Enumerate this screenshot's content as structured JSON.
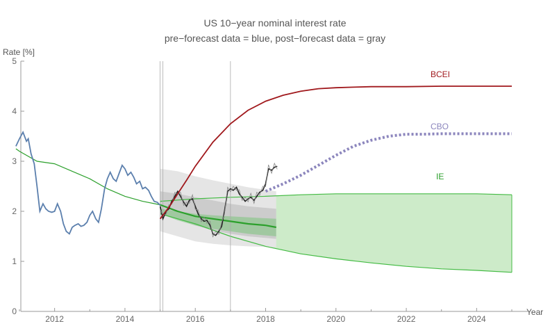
{
  "chart_data": {
    "type": "line",
    "title": "US 10−year nominal interest rate",
    "subtitle": "pre−forecast data = blue, post−forecast data = gray",
    "xlabel": "Year",
    "ylabel": "Rate [%]",
    "xlim": [
      2010.9,
      2025.1
    ],
    "ylim": [
      0,
      5
    ],
    "x_ticks": [
      {
        "value": 2012,
        "label": "2012"
      },
      {
        "value": 2014,
        "label": "2014"
      },
      {
        "value": 2016,
        "label": "2016"
      },
      {
        "value": 2018,
        "label": "2018"
      },
      {
        "value": 2020,
        "label": "2020"
      },
      {
        "value": 2022,
        "label": "2022"
      },
      {
        "value": 2024,
        "label": "2024"
      }
    ],
    "y_ticks": [
      {
        "value": 0,
        "label": "0"
      },
      {
        "value": 1,
        "label": "1"
      },
      {
        "value": 2,
        "label": "2"
      },
      {
        "value": 3,
        "label": "3"
      },
      {
        "value": 4,
        "label": "4"
      },
      {
        "value": 5,
        "label": "5"
      }
    ],
    "vertical_lines": [
      2015.0,
      2015.08,
      2017.0
    ],
    "colors": {
      "pre": "#5b7fad",
      "post": "#222222",
      "bcei": "#a0181c",
      "cbo": "#8c86bd",
      "ie_line": "#2ca02c",
      "ie_band": "#cdebc9",
      "ie_band_edge": "#44bb44",
      "gray_outer": "#e5e5e5",
      "gray_mid": "#cccccc",
      "inner_green": "#7cc47c",
      "text": "#555555",
      "axis": "#999999"
    },
    "series": [
      {
        "name": "pre-forecast data",
        "style": "blue",
        "x": [
          2010.9,
          2011.0,
          2011.1,
          2011.2,
          2011.25,
          2011.33,
          2011.42,
          2011.5,
          2011.58,
          2011.67,
          2011.75,
          2011.83,
          2011.92,
          2012.0,
          2012.08,
          2012.17,
          2012.25,
          2012.33,
          2012.42,
          2012.5,
          2012.58,
          2012.67,
          2012.75,
          2012.83,
          2012.92,
          2013.0,
          2013.08,
          2013.17,
          2013.25,
          2013.33,
          2013.42,
          2013.5,
          2013.58,
          2013.67,
          2013.75,
          2013.83,
          2013.92,
          2014.0,
          2014.08,
          2014.17,
          2014.25,
          2014.33,
          2014.42,
          2014.5,
          2014.58,
          2014.67,
          2014.75,
          2014.83,
          2014.92,
          2015.0
        ],
        "values": [
          3.3,
          3.45,
          3.58,
          3.4,
          3.45,
          3.15,
          2.95,
          2.5,
          2.0,
          2.15,
          2.05,
          2.0,
          1.98,
          2.0,
          2.15,
          2.0,
          1.75,
          1.6,
          1.55,
          1.68,
          1.72,
          1.75,
          1.7,
          1.72,
          1.78,
          1.92,
          2.0,
          1.85,
          1.78,
          2.05,
          2.45,
          2.65,
          2.78,
          2.65,
          2.6,
          2.75,
          2.92,
          2.85,
          2.72,
          2.78,
          2.68,
          2.55,
          2.6,
          2.45,
          2.48,
          2.42,
          2.3,
          2.2,
          2.18,
          2.12
        ]
      },
      {
        "name": "post-forecast data",
        "style": "black",
        "x": [
          2015.0,
          2015.08,
          2015.17,
          2015.25,
          2015.33,
          2015.42,
          2015.5,
          2015.58,
          2015.67,
          2015.75,
          2015.83,
          2015.92,
          2016.0,
          2016.08,
          2016.17,
          2016.25,
          2016.33,
          2016.42,
          2016.5,
          2016.58,
          2016.67,
          2016.75,
          2016.83,
          2016.92,
          2017.0,
          2017.08,
          2017.17,
          2017.25,
          2017.33,
          2017.42,
          2017.5,
          2017.58,
          2017.67,
          2017.75,
          2017.83,
          2017.92,
          2018.0,
          2018.08,
          2018.17,
          2018.25,
          2018.33
        ],
        "values": [
          2.1,
          1.85,
          2.0,
          2.05,
          2.2,
          2.3,
          2.4,
          2.3,
          2.18,
          2.1,
          2.22,
          2.25,
          2.1,
          1.95,
          1.85,
          1.8,
          1.82,
          1.72,
          1.55,
          1.52,
          1.6,
          1.7,
          2.0,
          2.4,
          2.45,
          2.42,
          2.48,
          2.35,
          2.28,
          2.2,
          2.25,
          2.28,
          2.22,
          2.3,
          2.38,
          2.42,
          2.55,
          2.85,
          2.82,
          2.88,
          2.9
        ]
      },
      {
        "name": "BCEI",
        "label": "BCEI",
        "x": [
          2015.0,
          2015.25,
          2015.5,
          2015.75,
          2016.0,
          2016.5,
          2017.0,
          2017.5,
          2018.0,
          2018.5,
          2019.0,
          2019.5,
          2020.0,
          2020.5,
          2021.0,
          2021.5,
          2022.0,
          2023.0,
          2024.0,
          2025.0
        ],
        "values": [
          1.85,
          2.08,
          2.35,
          2.62,
          2.9,
          3.38,
          3.75,
          4.02,
          4.2,
          4.32,
          4.4,
          4.45,
          4.47,
          4.48,
          4.49,
          4.49,
          4.49,
          4.5,
          4.5,
          4.5
        ]
      },
      {
        "name": "CBO",
        "label": "CBO",
        "x": [
          2018.0,
          2018.5,
          2019.0,
          2019.5,
          2020.0,
          2020.5,
          2021.0,
          2021.5,
          2022.0,
          2022.5,
          2023.0,
          2023.5,
          2024.0,
          2024.5,
          2025.0
        ],
        "values": [
          2.4,
          2.55,
          2.72,
          2.92,
          3.12,
          3.3,
          3.42,
          3.5,
          3.54,
          3.54,
          3.55,
          3.55,
          3.55,
          3.55,
          3.55
        ]
      },
      {
        "name": "IE",
        "label": "IE",
        "x": [
          2010.9,
          2011.0,
          2011.5,
          2012.0,
          2012.5,
          2013.0,
          2013.5,
          2014.0,
          2014.5,
          2015.0,
          2015.5,
          2016.0,
          2016.5,
          2017.0,
          2017.5,
          2018.0,
          2018.3
        ],
        "values": [
          3.25,
          3.2,
          3.0,
          2.95,
          2.8,
          2.65,
          2.45,
          2.3,
          2.2,
          2.13,
          2.0,
          1.9,
          1.85,
          1.8,
          1.75,
          1.72,
          1.68
        ]
      },
      {
        "name": "IE upper",
        "x": [
          2015.0,
          2016.0,
          2017.0,
          2018.0,
          2019.0,
          2020.0,
          2021.0,
          2022.0,
          2023.0,
          2024.0,
          2025.0
        ],
        "values": [
          2.2,
          2.25,
          2.28,
          2.3,
          2.33,
          2.35,
          2.35,
          2.35,
          2.35,
          2.35,
          2.33
        ]
      },
      {
        "name": "IE lower",
        "x": [
          2015.0,
          2016.0,
          2017.0,
          2018.0,
          2019.0,
          2020.0,
          2021.0,
          2022.0,
          2023.0,
          2024.0,
          2025.0
        ],
        "values": [
          1.95,
          1.75,
          1.5,
          1.3,
          1.15,
          1.05,
          0.97,
          0.9,
          0.85,
          0.82,
          0.78
        ]
      },
      {
        "name": "gray band outer",
        "x": [
          2015.0,
          2015.5,
          2016.0,
          2016.5,
          2017.0,
          2017.5,
          2018.3
        ],
        "upper": [
          2.85,
          2.8,
          2.7,
          2.62,
          2.55,
          2.48,
          2.4
        ],
        "lower": [
          1.6,
          1.5,
          1.4,
          1.35,
          1.32,
          1.3,
          1.28
        ]
      },
      {
        "name": "gray band inner",
        "x": [
          2015.0,
          2015.5,
          2016.0,
          2016.5,
          2017.0,
          2017.5,
          2018.3
        ],
        "upper": [
          2.4,
          2.35,
          2.28,
          2.22,
          2.15,
          2.1,
          2.05
        ],
        "lower": [
          1.95,
          1.85,
          1.72,
          1.62,
          1.55,
          1.5,
          1.45
        ]
      },
      {
        "name": "inner green band",
        "x": [
          2015.0,
          2015.5,
          2016.0,
          2016.5,
          2017.0,
          2017.5,
          2018.3
        ],
        "upper": [
          2.05,
          2.0,
          1.95,
          1.92,
          1.9,
          1.88,
          1.85
        ],
        "lower": [
          1.95,
          1.82,
          1.72,
          1.65,
          1.6,
          1.55,
          1.5
        ]
      }
    ]
  }
}
